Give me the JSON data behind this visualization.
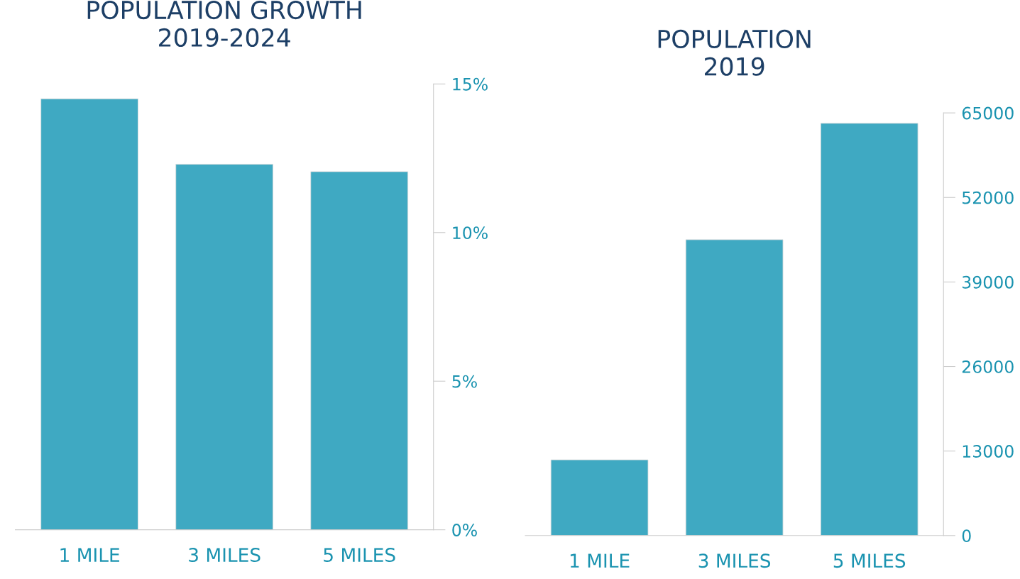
{
  "chart_data": [
    {
      "type": "bar",
      "title": "POPULATION GROWTH\n2019-2024",
      "categories": [
        "1 MILE",
        "3 MILES",
        "5 MILES"
      ],
      "values": [
        14.5,
        12.3,
        12.05
      ],
      "color": "#3fa9c2",
      "ylim": [
        0,
        15
      ],
      "yticks": [
        {
          "value": 0,
          "label": "0%"
        },
        {
          "value": 5,
          "label": "5%"
        },
        {
          "value": 10,
          "label": "10%"
        },
        {
          "value": 15,
          "label": "15%"
        }
      ],
      "grid": false,
      "legend": false
    },
    {
      "type": "bar",
      "title": "POPULATION\n2019",
      "categories": [
        "1 MILE",
        "3 MILES",
        "5 MILES"
      ],
      "values": [
        11650,
        45500,
        63400
      ],
      "color": "#3fa9c2",
      "ylim": [
        0,
        65000
      ],
      "yticks": [
        0,
        13000,
        26000,
        39000,
        52000,
        65000
      ],
      "grid": false,
      "legend": false
    }
  ]
}
